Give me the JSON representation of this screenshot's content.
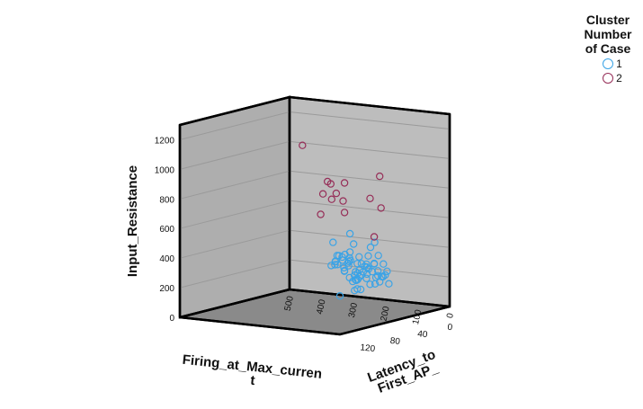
{
  "chart_data": {
    "type": "scatter3d",
    "axes": {
      "x": {
        "label_lines": [
          "Firing_at_Max_curren",
          "t"
        ],
        "ticks": [
          0,
          40,
          80,
          120
        ]
      },
      "y": {
        "label": "Input_Resistance",
        "ticks": [
          0,
          200,
          400,
          600,
          800,
          1000,
          1200
        ]
      },
      "z": {
        "label_lines": [
          "Latency_to",
          "First_AP_"
        ],
        "ticks": [
          0,
          100,
          200,
          300,
          400,
          500
        ]
      }
    },
    "legend": {
      "title_lines": [
        "Cluster",
        "Number",
        "of Case"
      ],
      "items": [
        {
          "label": "1",
          "color": "#3aa3e6"
        },
        {
          "label": "2",
          "color": "#962e58"
        }
      ]
    },
    "series": [
      {
        "name": "1",
        "color": "#3aa3e6",
        "points": [
          [
            10,
            280,
            330
          ],
          [
            14,
            215,
            340
          ],
          [
            18,
            230,
            320
          ],
          [
            22,
            260,
            310
          ],
          [
            24,
            460,
            260
          ],
          [
            26,
            300,
            280
          ],
          [
            28,
            250,
            290
          ],
          [
            32,
            220,
            260
          ],
          [
            35,
            290,
            240
          ],
          [
            38,
            360,
            230
          ],
          [
            40,
            270,
            230
          ],
          [
            42,
            310,
            220
          ],
          [
            44,
            240,
            200
          ],
          [
            46,
            300,
            190
          ],
          [
            48,
            350,
            180
          ],
          [
            50,
            200,
            180
          ],
          [
            52,
            270,
            170
          ],
          [
            54,
            240,
            160
          ],
          [
            56,
            320,
            140
          ],
          [
            58,
            380,
            130
          ],
          [
            60,
            260,
            130
          ],
          [
            62,
            300,
            120
          ],
          [
            64,
            450,
            110
          ],
          [
            66,
            290,
            100
          ],
          [
            68,
            350,
            90
          ],
          [
            70,
            260,
            80
          ],
          [
            72,
            310,
            70
          ],
          [
            74,
            240,
            60
          ],
          [
            76,
            280,
            50
          ],
          [
            78,
            370,
            40
          ],
          [
            80,
            300,
            30
          ],
          [
            82,
            330,
            20
          ],
          [
            84,
            250,
            10
          ],
          [
            50,
            360,
            220
          ],
          [
            44,
            310,
            240
          ],
          [
            60,
            320,
            190
          ],
          [
            66,
            220,
            150
          ],
          [
            72,
            500,
            80
          ],
          [
            76,
            420,
            60
          ],
          [
            82,
            370,
            60
          ],
          [
            86,
            300,
            40
          ],
          [
            62,
            360,
            180
          ],
          [
            70,
            470,
            150
          ],
          [
            78,
            290,
            120
          ],
          [
            84,
            270,
            80
          ],
          [
            88,
            240,
            60
          ],
          [
            56,
            280,
            210
          ],
          [
            40,
            330,
            260
          ],
          [
            30,
            400,
            300
          ],
          [
            48,
            180,
            200
          ],
          [
            58,
            210,
            170
          ],
          [
            64,
            250,
            160
          ],
          [
            74,
            330,
            100
          ],
          [
            80,
            270,
            110
          ],
          [
            90,
            250,
            40
          ],
          [
            54,
            300,
            150
          ],
          [
            68,
            340,
            130
          ],
          [
            46,
            240,
            230
          ],
          [
            36,
            280,
            280
          ],
          [
            88,
            300,
            20
          ],
          [
            120,
            240,
            40
          ],
          [
            125,
            260,
            10
          ],
          [
            118,
            320,
            60
          ],
          [
            130,
            270,
            10
          ],
          [
            160,
            260,
            0
          ],
          [
            70,
            290,
            120
          ]
        ]
      },
      {
        "name": "2",
        "color": "#962e58",
        "points": [
          [
            28,
            1030,
            400
          ],
          [
            38,
            820,
            300
          ],
          [
            48,
            610,
            300
          ],
          [
            54,
            760,
            280
          ],
          [
            52,
            830,
            260
          ],
          [
            60,
            740,
            240
          ],
          [
            58,
            780,
            230
          ],
          [
            60,
            860,
            200
          ],
          [
            62,
            740,
            200
          ],
          [
            60,
            660,
            200
          ],
          [
            86,
            760,
            30
          ],
          [
            88,
            820,
            60
          ],
          [
            110,
            600,
            0
          ],
          [
            102,
            1000,
            0
          ]
        ]
      }
    ]
  }
}
